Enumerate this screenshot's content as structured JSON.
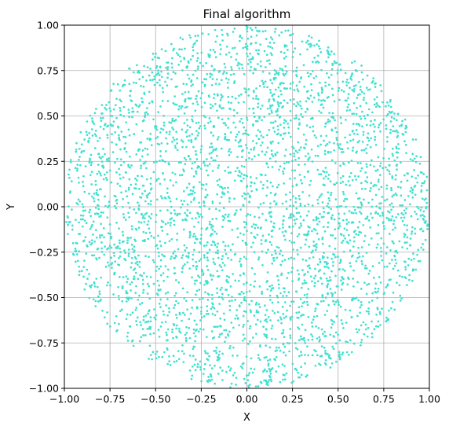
{
  "chart_data": {
    "type": "scatter",
    "title": "Final algorithm",
    "xlabel": "X",
    "ylabel": "Y",
    "xlim": [
      -1.0,
      1.0
    ],
    "ylim": [
      -1.0,
      1.0
    ],
    "xticks": [
      "−1.00",
      "−0.75",
      "−0.50",
      "−0.25",
      "0.00",
      "0.25",
      "0.50",
      "0.75",
      "1.00"
    ],
    "yticks": [
      "1.00",
      "0.75",
      "0.50",
      "0.25",
      "0.00",
      "−0.25",
      "−0.50",
      "−0.75",
      "−1.00"
    ],
    "grid": true,
    "point_color": "#40e0d0",
    "region": "unit disk",
    "center": [
      0,
      0
    ],
    "radius": 1.0,
    "points": [
      [
        0.0,
        0.98
      ],
      [
        -0.21,
        0.95
      ],
      [
        0.19,
        0.96
      ],
      [
        -0.4,
        0.87
      ],
      [
        0.44,
        0.86
      ],
      [
        -0.62,
        0.74
      ],
      [
        0.63,
        0.74
      ],
      [
        -0.77,
        0.56
      ],
      [
        0.79,
        0.55
      ],
      [
        -0.89,
        0.37
      ],
      [
        0.91,
        0.37
      ],
      [
        -0.96,
        0.14
      ],
      [
        0.97,
        0.13
      ],
      [
        -0.98,
        -0.1
      ],
      [
        0.98,
        -0.08
      ],
      [
        -0.92,
        -0.33
      ],
      [
        0.94,
        -0.3
      ],
      [
        -0.84,
        -0.51
      ],
      [
        0.84,
        -0.49
      ],
      [
        -0.71,
        -0.68
      ],
      [
        0.72,
        -0.66
      ],
      [
        -0.52,
        -0.84
      ],
      [
        0.51,
        -0.84
      ],
      [
        -0.3,
        -0.93
      ],
      [
        0.29,
        -0.94
      ],
      [
        -0.06,
        -0.98
      ],
      [
        0.08,
        -0.97
      ],
      [
        -0.55,
        0.52
      ],
      [
        0.48,
        0.58
      ],
      [
        -0.3,
        0.4
      ],
      [
        0.25,
        0.33
      ],
      [
        -0.1,
        0.7
      ],
      [
        0.12,
        0.58
      ],
      [
        -0.75,
        0.2
      ],
      [
        0.7,
        0.12
      ],
      [
        -0.45,
        0.05
      ],
      [
        0.4,
        -0.04
      ],
      [
        -0.15,
        0.15
      ],
      [
        0.05,
        -0.1
      ],
      [
        -0.62,
        -0.25
      ],
      [
        0.6,
        -0.3
      ],
      [
        -0.35,
        -0.45
      ],
      [
        0.33,
        -0.5
      ],
      [
        -0.18,
        -0.72
      ],
      [
        0.2,
        -0.68
      ],
      [
        -0.8,
        -0.05
      ],
      [
        0.82,
        0.3
      ],
      [
        -0.5,
        -0.62
      ],
      [
        0.55,
        0.7
      ],
      [
        0.0,
        0.4
      ]
    ]
  }
}
